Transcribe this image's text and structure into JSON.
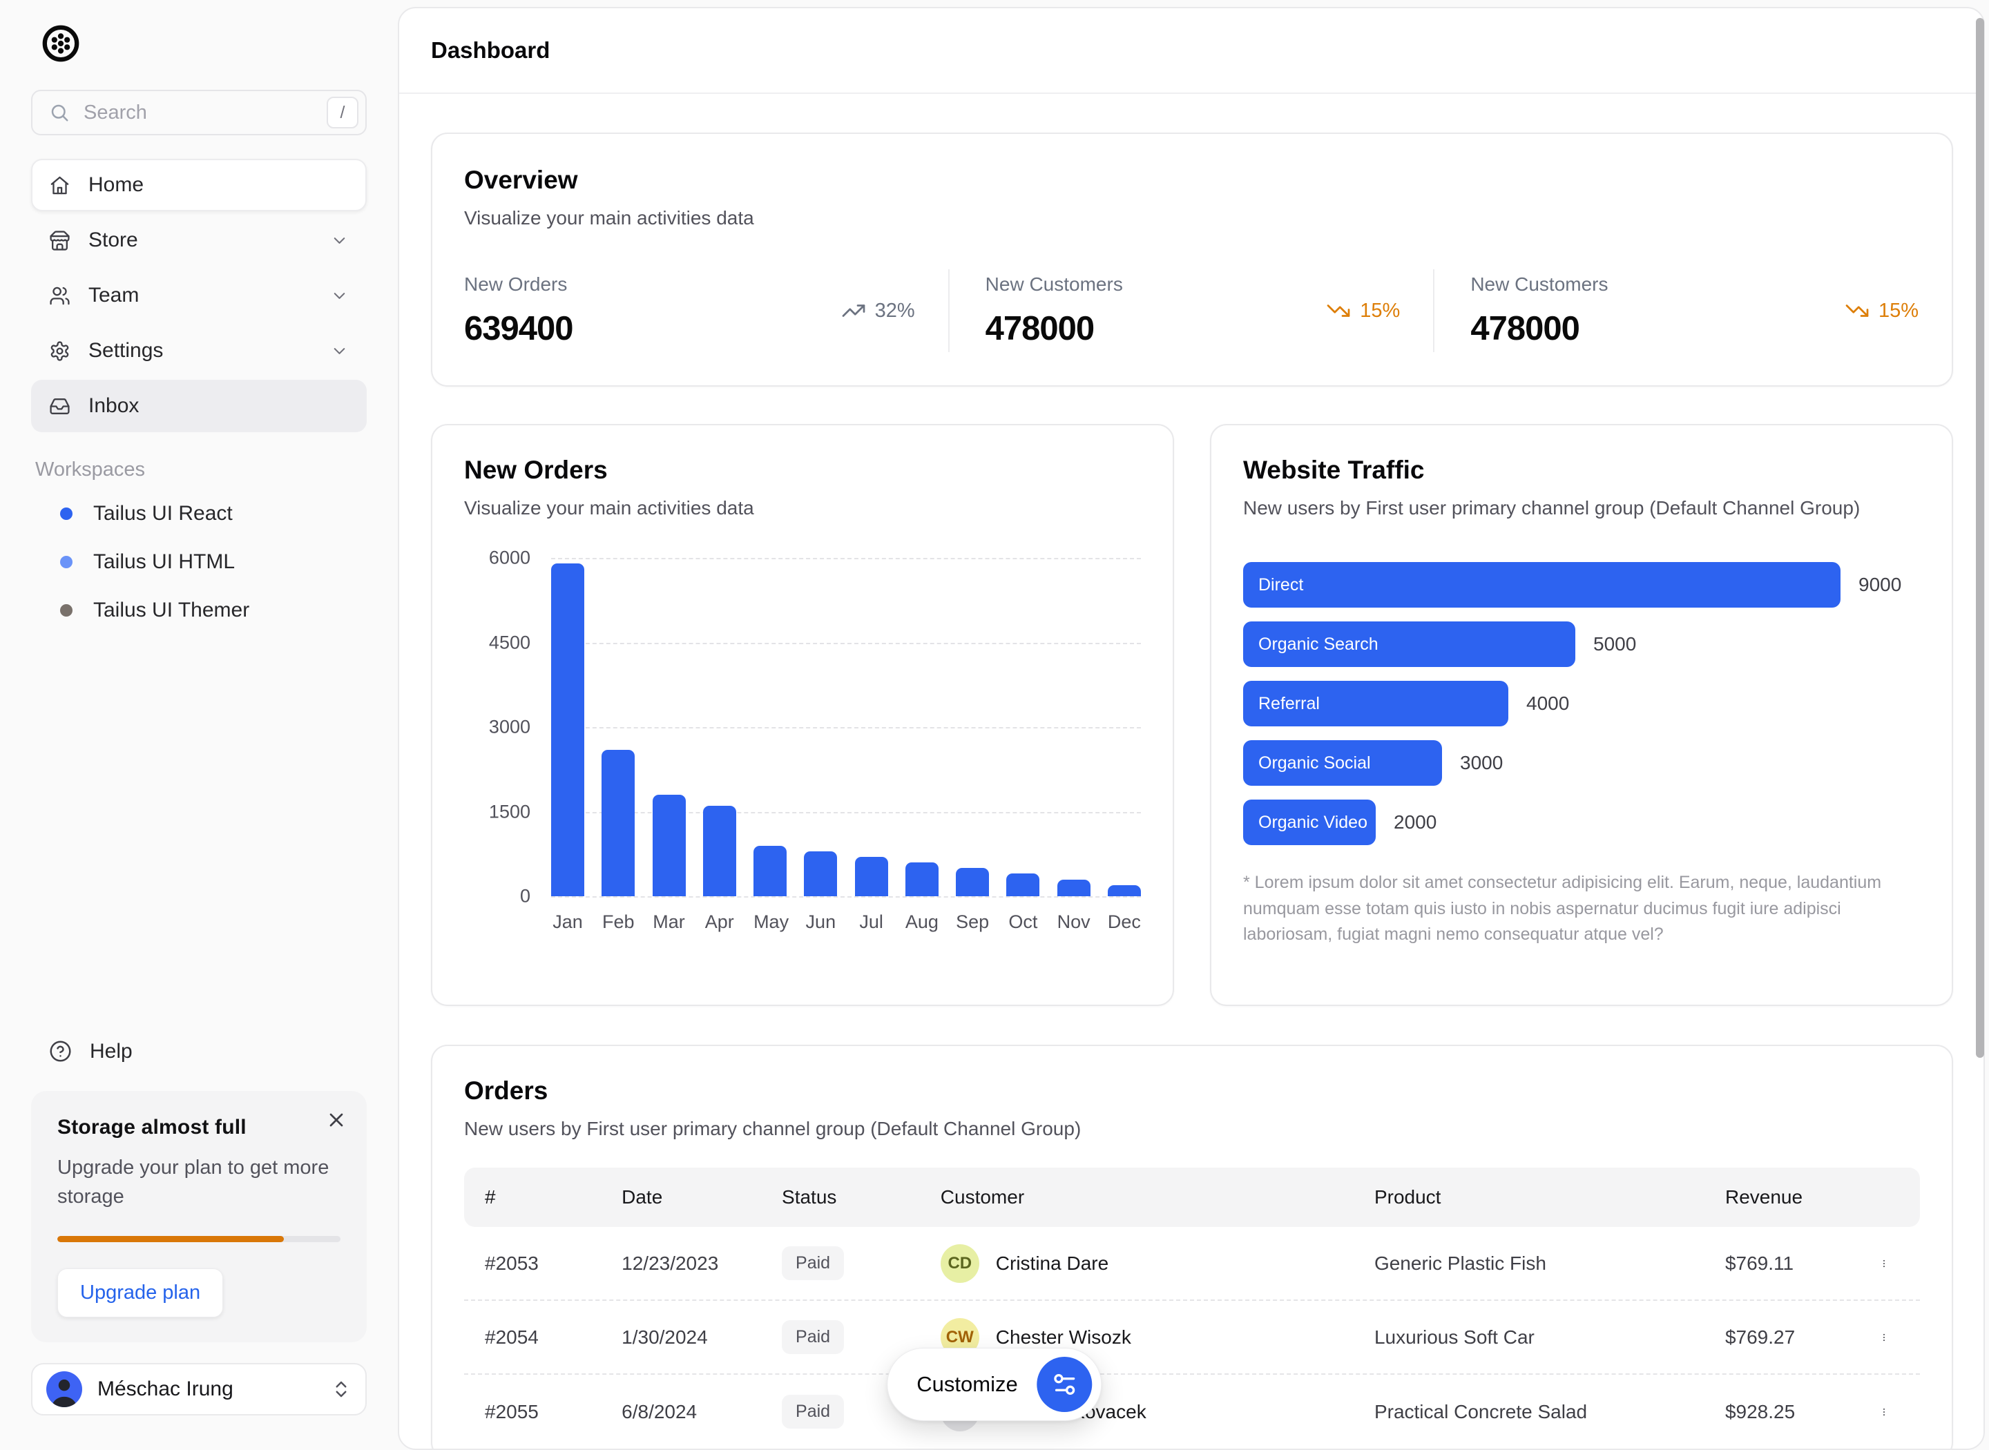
{
  "app": {
    "title": "Dashboard"
  },
  "colors": {
    "accent": "#2d63f0",
    "warning": "#dd7e08",
    "link": "#2563eb"
  },
  "sidebar": {
    "search": {
      "placeholder": "Search",
      "shortcut": "/"
    },
    "nav": [
      {
        "id": "home",
        "icon": "home",
        "label": "Home",
        "active": true
      },
      {
        "id": "store",
        "icon": "store",
        "label": "Store",
        "chevron": true
      },
      {
        "id": "team",
        "icon": "users",
        "label": "Team",
        "chevron": true
      },
      {
        "id": "settings",
        "icon": "settings",
        "label": "Settings",
        "chevron": true
      },
      {
        "id": "inbox",
        "icon": "inbox",
        "label": "Inbox",
        "highlight": true
      }
    ],
    "workspaces_label": "Workspaces",
    "workspaces": [
      {
        "label": "Tailus UI React",
        "dot_color": "#2d63f0"
      },
      {
        "label": "Tailus UI HTML",
        "dot_color": "#6a93f8"
      },
      {
        "label": "Tailus UI Themer",
        "dot_color": "#79716b"
      }
    ],
    "help_label": "Help",
    "storage": {
      "title": "Storage almost full",
      "body": "Upgrade your plan to get more storage",
      "progress_percent": 80,
      "cta_label": "Upgrade plan"
    },
    "user": {
      "name": "Méschac Irung"
    }
  },
  "overview": {
    "title": "Overview",
    "subtitle": "Visualize your main activities data",
    "stats": [
      {
        "label": "New Orders",
        "value": "639400",
        "percent": "32%",
        "direction": "up"
      },
      {
        "label": "New Customers",
        "value": "478000",
        "percent": "15%",
        "direction": "down"
      },
      {
        "label": "New Customers",
        "value": "478000",
        "percent": "15%",
        "direction": "down"
      }
    ]
  },
  "chart_data": [
    {
      "type": "bar",
      "title": "New Orders",
      "subtitle": "Visualize your main activities data",
      "categories": [
        "Jan",
        "Feb",
        "Mar",
        "Apr",
        "May",
        "Jun",
        "Jul",
        "Aug",
        "Sep",
        "Oct",
        "Nov",
        "Dec"
      ],
      "values": [
        5900,
        2600,
        1800,
        1600,
        900,
        800,
        700,
        600,
        500,
        400,
        300,
        200
      ],
      "xlabel": "",
      "ylabel": "",
      "ylim": [
        0,
        6000
      ],
      "yticks": [
        0,
        1500,
        3000,
        4500,
        6000
      ],
      "grid": "horizontal-dashed",
      "legend": "none",
      "bar_color": "#2d63f0"
    },
    {
      "type": "bar",
      "orientation": "horizontal",
      "title": "Website Traffic",
      "subtitle": "New users by First user primary channel group (Default Channel Group)",
      "categories": [
        "Direct",
        "Organic Search",
        "Referral",
        "Organic Social",
        "Organic Video"
      ],
      "values": [
        9000,
        5000,
        4000,
        3000,
        2000
      ],
      "xlim": [
        0,
        9000
      ],
      "grid": "off",
      "legend": "none",
      "bar_color": "#2d63f0",
      "footnote": "* Lorem ipsum dolor sit amet consectetur adipisicing elit. Earum, neque, laudantium numquam esse totam quis iusto in nobis aspernatur ducimus fugit iure adipisci laboriosam, fugiat magni nemo consequatur atque vel?"
    }
  ],
  "orders": {
    "title": "Orders",
    "subtitle": "New users by First user primary channel group (Default Channel Group)",
    "columns": [
      "#",
      "Date",
      "Status",
      "Customer",
      "Product",
      "Revenue"
    ],
    "rows": [
      {
        "id": "#2053",
        "date": "12/23/2023",
        "status": "Paid",
        "initials": "CD",
        "customer": "Cristina Dare",
        "avatar_bg": "#e7efa4",
        "avatar_fg": "#5c661f",
        "product": "Generic Plastic Fish",
        "revenue": "$769.11"
      },
      {
        "id": "#2054",
        "date": "1/30/2024",
        "status": "Paid",
        "initials": "CW",
        "customer": "Chester Wisozk",
        "avatar_bg": "#f2eda1",
        "avatar_fg": "#a16207",
        "product": "Luxurious Soft Car",
        "revenue": "$769.27"
      },
      {
        "id": "#2055",
        "date": "6/8/2024",
        "status": "Paid",
        "initials": "PK",
        "customer": "Paulette Kovacek",
        "avatar_bg": "#e4e4e7",
        "avatar_fg": "#3f3f46",
        "product": "Practical Concrete Salad",
        "revenue": "$928.25"
      }
    ]
  },
  "customize_label": "Customize"
}
